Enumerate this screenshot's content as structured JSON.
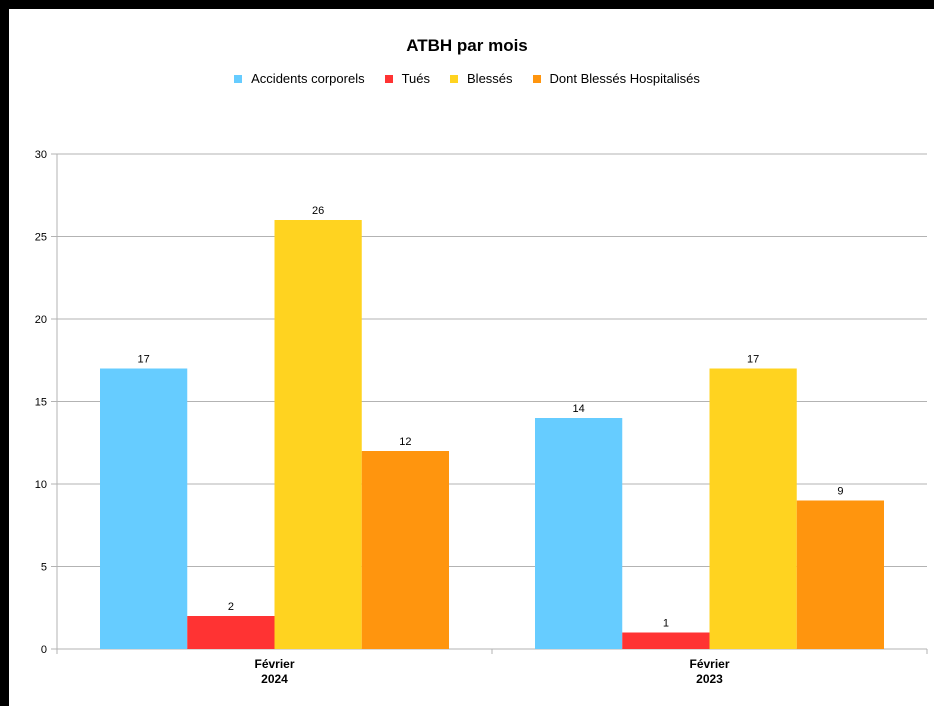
{
  "chart_data": {
    "type": "bar",
    "title": "ATBH par mois",
    "categories": [
      {
        "line1": "Février",
        "line2": "2024"
      },
      {
        "line1": "Février",
        "line2": "2023"
      }
    ],
    "series": [
      {
        "name": "Accidents corporels",
        "color": "#66ccff",
        "values": [
          17,
          14
        ]
      },
      {
        "name": "Tués",
        "color": "#ff3333",
        "values": [
          2,
          1
        ]
      },
      {
        "name": "Blessés",
        "color": "#ffd320",
        "values": [
          26,
          17
        ]
      },
      {
        "name": "Dont Blessés Hospitalisés",
        "color": "#ff950e",
        "values": [
          12,
          9
        ]
      }
    ],
    "ylim": [
      0,
      30
    ],
    "yticks": [
      0,
      5,
      10,
      15,
      20,
      25,
      30
    ],
    "grid": true,
    "legend_position": "top"
  }
}
